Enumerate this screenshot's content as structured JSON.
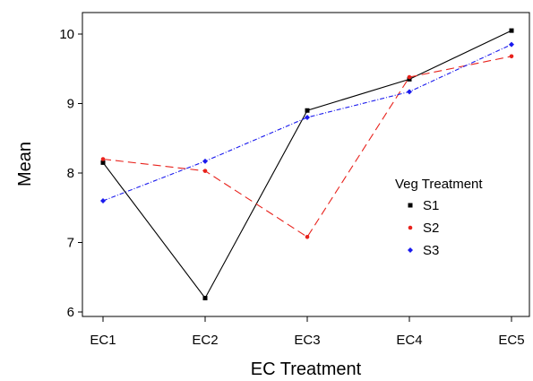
{
  "chart_data": {
    "type": "line",
    "title": "",
    "xlabel": "EC Treatment",
    "ylabel": "Mean",
    "categories": [
      "EC1",
      "EC2",
      "EC3",
      "EC4",
      "EC5"
    ],
    "ylim": [
      5.85,
      10.35
    ],
    "yticks": [
      6,
      7,
      8,
      9,
      10
    ],
    "grid": false,
    "legend": {
      "title": "Veg Treatment",
      "placement": "right"
    },
    "series": [
      {
        "name": "S1",
        "color": "#000000",
        "dash": "solid",
        "marker": "square",
        "values": [
          8.15,
          6.2,
          8.9,
          9.35,
          10.05
        ]
      },
      {
        "name": "S2",
        "color": "#e8221c",
        "dash": "long-dash",
        "marker": "circle",
        "values": [
          8.2,
          8.03,
          7.08,
          9.38,
          9.68
        ]
      },
      {
        "name": "S3",
        "color": "#1a1aee",
        "dash": "dash-dot",
        "marker": "diamond",
        "values": [
          7.6,
          8.17,
          8.8,
          9.17,
          9.85
        ]
      }
    ]
  }
}
